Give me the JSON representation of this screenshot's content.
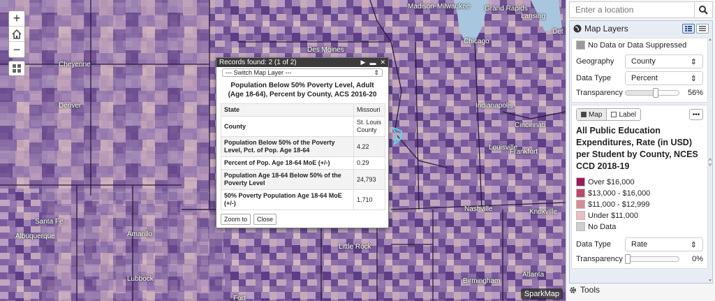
{
  "map": {
    "zoom_in": "+",
    "zoom_out": "−",
    "brand": "SparkMap",
    "cities": [
      "Madison",
      "Milwaukee",
      "Grand Rapids",
      "Lansing",
      "Det",
      "Des Moines",
      "Chicago",
      "Cheyenne",
      "Denver",
      "Indianapolis",
      "Cincinnati",
      "Louisville",
      "Frankfort",
      "Nashville",
      "Knoxville",
      "Santa Fe",
      "Albuquerque",
      "Amarillo",
      "Little Rock",
      "Birmingham",
      "Atlanta",
      "Lubbock",
      "Fort"
    ]
  },
  "popup": {
    "header": "Records found: 2 (1 of 2)",
    "switch_placeholder": "--- Switch Map Layer ---",
    "title": "Population Below 50% Poverty Level, Adult (Age 18-64), Percent by County, ACS 2016-20",
    "rows": [
      {
        "k": "State",
        "v": "Missouri"
      },
      {
        "k": "County",
        "v": "St. Louis County"
      },
      {
        "k": "Population Below 50% of the Poverty Level, Pct. of Pop. Age 18-64",
        "v": "4.22"
      },
      {
        "k": "Percent of Pop. Age 18-64 MoE (+/-)",
        "v": "0.29"
      },
      {
        "k": "Population Age 18-64 Below 50% of the Poverty Level",
        "v": "24,793"
      },
      {
        "k": "50% Poverty Population Age 18-64 MoE (+/-)",
        "v": "1,710"
      }
    ],
    "zoom_to": "Zoom to",
    "close": "Close"
  },
  "sidebar": {
    "search_placeholder": "Enter a location",
    "panel_title": "Map Layers",
    "layer1": {
      "no_data": "No Data or Data Suppressed",
      "geography_label": "Geography",
      "geography_value": "County",
      "data_type_label": "Data Type",
      "data_type_value": "Percent",
      "transparency_label": "Transparency",
      "transparency_value": "56%",
      "transparency_fraction": 0.56
    },
    "layer2": {
      "map_toggle": "Map",
      "label_toggle": "Label",
      "menu": "•••",
      "title": "All Public Education Expenditures, Rate (in USD) per Student by County, NCES CCD 2018-19",
      "legend": [
        {
          "label": "Over $16,000",
          "color": "#9c1a5e"
        },
        {
          "label": "$13,000 - $16,000",
          "color": "#c0456f"
        },
        {
          "label": "$11,000 - $12,999",
          "color": "#d98a97"
        },
        {
          "label": "Under $11,000",
          "color": "#edbcc4"
        },
        {
          "label": "No Data",
          "color": "#cfcfcf"
        }
      ],
      "data_type_label": "Data Type",
      "data_type_value": "Rate",
      "transparency_label": "Transparency",
      "transparency_value": "0%",
      "transparency_fraction": 0.0
    },
    "tools": "Tools"
  },
  "colors": {
    "no_data_swatch": "#9a9a9a",
    "lake": "#a9c6df"
  }
}
